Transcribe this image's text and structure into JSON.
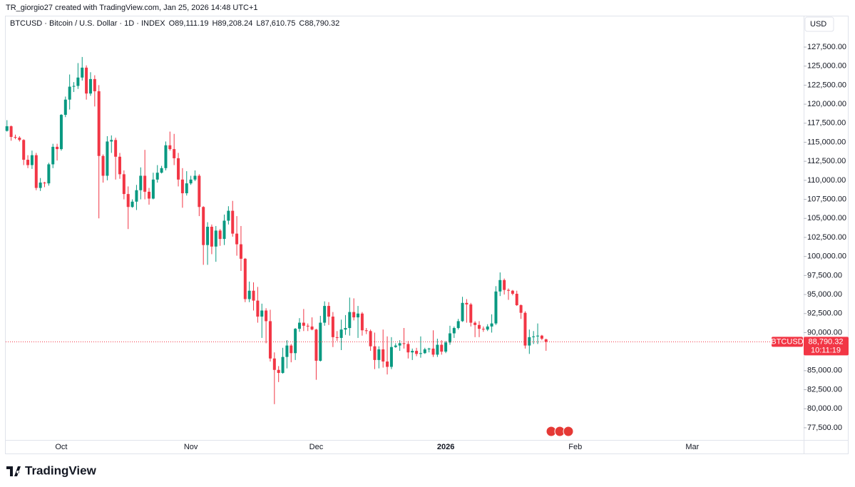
{
  "header": {
    "credit": "TR_giorgio27 created with TradingView.com, Jan 25, 2026 14:48 UTC+1"
  },
  "footer": {
    "logo": "TradingView"
  },
  "chart_data": {
    "type": "candlestick",
    "legend": {
      "symbol": "BTCUSD · Bitcoin / U.S. Dollar · 1D · INDEX",
      "open": "O89,111.19",
      "high": "H89,208.24",
      "low": "L87,610.75",
      "close": "C88,790.32"
    },
    "currency": "USD",
    "up_color": "#089981",
    "down_color": "#f23645",
    "open": [
      116500,
      117100,
      115700,
      115600,
      115300,
      112700,
      112000,
      113300,
      109000,
      109700,
      109600,
      112100,
      114400,
      114100,
      118600,
      120600,
      122300,
      122400,
      123500,
      124800,
      121400,
      123300,
      121700,
      113200,
      110600,
      115100,
      115300,
      113100,
      110800,
      108200,
      106500,
      107200,
      108700,
      110600,
      108500,
      107600,
      110100,
      111000,
      111600,
      114600,
      114100,
      112900,
      110100,
      108300,
      109600,
      110100,
      110600,
      106500,
      101500,
      103900,
      101300,
      103400,
      102300,
      104700,
      106000,
      103000,
      101600,
      99700,
      94400,
      95500,
      94200,
      92100,
      92900,
      91500,
      86600,
      85100,
      84700,
      86800,
      88300,
      87300,
      90500,
      91300,
      90900,
      90800,
      90400,
      86300,
      91300,
      93500,
      92100,
      89400,
      89300,
      90400,
      90600,
      92700,
      92000,
      92500,
      90300,
      90200,
      88200,
      86400,
      87800,
      86200,
      85500,
      88100,
      88300,
      88600,
      88500,
      87400,
      87600,
      87200,
      87300,
      87800,
      87900,
      87100,
      88400,
      87500,
      88700,
      89900,
      90600,
      91500,
      93900,
      93700,
      91300,
      91000,
      90500,
      90400,
      90800,
      91200,
      95400,
      96900,
      95600,
      95500,
      95100,
      93600,
      92600,
      88300,
      89400,
      89500,
      89600,
      89111.19
    ],
    "high": [
      117900,
      117200,
      116000,
      115800,
      115400,
      113300,
      113900,
      113600,
      110300,
      109800,
      112300,
      114800,
      114800,
      118700,
      121000,
      123900,
      122900,
      125400,
      126200,
      125100,
      124200,
      123800,
      122500,
      113400,
      115800,
      115900,
      115600,
      113600,
      111300,
      109200,
      107500,
      109400,
      111700,
      114000,
      109000,
      111000,
      112000,
      111900,
      115100,
      116400,
      116100,
      113600,
      111600,
      111200,
      110600,
      111300,
      110800,
      106600,
      104500,
      104200,
      104000,
      103600,
      105500,
      106600,
      107300,
      105300,
      104000,
      99800,
      96700,
      96600,
      96000,
      93800,
      93200,
      93000,
      87400,
      85600,
      88000,
      89000,
      88500,
      90600,
      91900,
      93100,
      91200,
      92000,
      90500,
      92200,
      94100,
      94000,
      92700,
      90200,
      91700,
      92300,
      94600,
      94500,
      93500,
      92700,
      90600,
      90400,
      90000,
      88200,
      90400,
      89500,
      89400,
      88600,
      89000,
      90600,
      88900,
      87900,
      88000,
      89500,
      88000,
      88000,
      90300,
      89200,
      89000,
      88900,
      90900,
      90800,
      91800,
      94700,
      94400,
      93900,
      91500,
      91500,
      90800,
      91100,
      92400,
      96100,
      97900,
      97100,
      95800,
      95600,
      95500,
      93700,
      92800,
      90400,
      90200,
      91200,
      89700,
      89208.24
    ],
    "low": [
      116400,
      115200,
      115400,
      115100,
      112000,
      111600,
      111500,
      108700,
      108600,
      109100,
      109300,
      111600,
      112600,
      113900,
      118300,
      119300,
      121600,
      122000,
      123100,
      120600,
      121100,
      119700,
      105000,
      109700,
      110000,
      113600,
      110100,
      110200,
      107500,
      103600,
      106400,
      106100,
      107500,
      107500,
      106800,
      107500,
      109700,
      110900,
      111300,
      113900,
      112000,
      109200,
      106400,
      108000,
      109400,
      109900,
      105300,
      98900,
      98900,
      100300,
      99300,
      101400,
      101500,
      104200,
      102600,
      100100,
      98100,
      94000,
      94000,
      92900,
      91300,
      89300,
      88600,
      86200,
      80600,
      83500,
      84600,
      85300,
      86100,
      86400,
      90100,
      90200,
      90200,
      90300,
      83800,
      86200,
      90900,
      91000,
      88100,
      88900,
      87700,
      89700,
      89600,
      91600,
      89300,
      89600,
      89800,
      87600,
      85200,
      85300,
      85400,
      84500,
      85200,
      88000,
      87600,
      87900,
      86600,
      86400,
      86900,
      86700,
      87200,
      87400,
      86800,
      86800,
      87100,
      87300,
      88400,
      89300,
      90400,
      91400,
      91300,
      90800,
      89400,
      89400,
      90100,
      90200,
      90000,
      91000,
      94800,
      95000,
      94300,
      94900,
      93500,
      91800,
      87900,
      87200,
      88500,
      88500,
      89000,
      87610.75
    ],
    "close": [
      117100,
      115700,
      115600,
      115300,
      112700,
      112000,
      113300,
      109000,
      109700,
      109600,
      112100,
      114400,
      114100,
      118600,
      120600,
      122300,
      122400,
      123500,
      124800,
      121400,
      123300,
      121700,
      113200,
      110600,
      115100,
      115300,
      113100,
      110800,
      108200,
      106500,
      107200,
      108700,
      110600,
      108500,
      107600,
      110100,
      111000,
      111600,
      114600,
      114100,
      112900,
      110100,
      108300,
      109600,
      110100,
      110600,
      106500,
      101500,
      103900,
      101300,
      103400,
      102300,
      104700,
      106000,
      103000,
      101600,
      99700,
      94400,
      95500,
      94200,
      92100,
      92900,
      91500,
      86600,
      85100,
      84700,
      86800,
      88300,
      87300,
      90500,
      91300,
      90900,
      90800,
      90400,
      86300,
      91300,
      93500,
      92100,
      89400,
      89300,
      90400,
      90600,
      92700,
      92000,
      92500,
      90300,
      90200,
      88200,
      86400,
      87800,
      86200,
      85500,
      88100,
      88300,
      88600,
      88500,
      87400,
      87600,
      87200,
      87300,
      87800,
      87900,
      87100,
      88400,
      87500,
      88700,
      89900,
      90600,
      91500,
      93900,
      93700,
      91300,
      91000,
      90500,
      90400,
      90800,
      91200,
      95400,
      96900,
      95600,
      95500,
      95100,
      93600,
      92600,
      88300,
      89400,
      89500,
      89600,
      89200,
      88790.32
    ],
    "last_price": {
      "symbol_tag": "BTCUSD",
      "value_label": "88,790.32",
      "countdown": "10:11:19"
    },
    "xlim": [
      -0.3,
      190.3
    ],
    "xticks": [
      {
        "value": 13,
        "label": "Oct"
      },
      {
        "value": 44,
        "label": "Nov"
      },
      {
        "value": 74,
        "label": "Dec"
      },
      {
        "value": 105,
        "label": "2026"
      },
      {
        "value": 136,
        "label": "Feb"
      },
      {
        "value": 164,
        "label": "Mar"
      }
    ],
    "ylim": [
      75900,
      129470
    ],
    "yticks": [
      {
        "value": 77500,
        "label": "77,500.00"
      },
      {
        "value": 80000,
        "label": "80,000.00"
      },
      {
        "value": 82500,
        "label": "82,500.00"
      },
      {
        "value": 85000,
        "label": "85,000.00"
      },
      {
        "value": 87500,
        "label": "87,500.00"
      },
      {
        "value": 90000,
        "label": "90,000.00"
      },
      {
        "value": 92500,
        "label": "92,500.00"
      },
      {
        "value": 95000,
        "label": "95,000.00"
      },
      {
        "value": 97500,
        "label": "97,500.00"
      },
      {
        "value": 100000,
        "label": "100,000.00"
      },
      {
        "value": 102500,
        "label": "102,500.00"
      },
      {
        "value": 105000,
        "label": "105,000.00"
      },
      {
        "value": 107500,
        "label": "107,500.00"
      },
      {
        "value": 110000,
        "label": "110,000.00"
      },
      {
        "value": 112500,
        "label": "112,500.00"
      },
      {
        "value": 115000,
        "label": "115,000.00"
      },
      {
        "value": 117500,
        "label": "117,500.00"
      },
      {
        "value": 120000,
        "label": "120,000.00"
      },
      {
        "value": 122500,
        "label": "122,500.00"
      },
      {
        "value": 125000,
        "label": "125,000.00"
      },
      {
        "value": 127500,
        "label": "127,500.00"
      }
    ]
  }
}
